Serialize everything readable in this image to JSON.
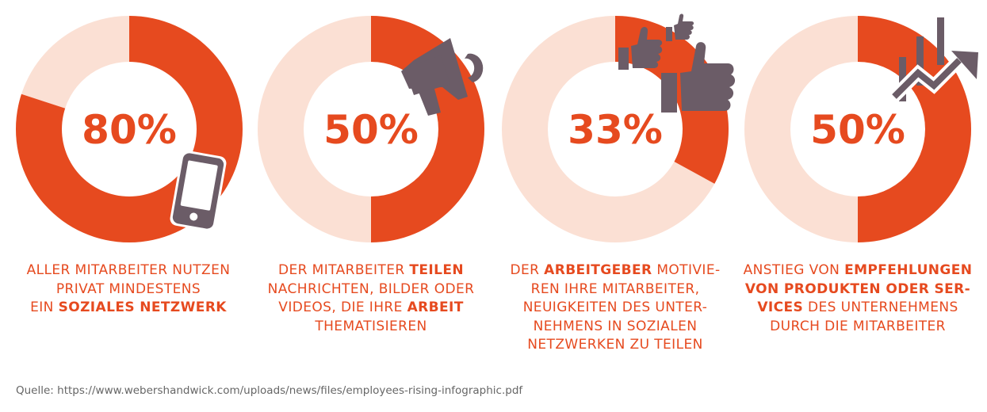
{
  "chart_data": {
    "type": "pie",
    "variant": "donut",
    "colors": {
      "filled": "#e64a1f",
      "remainder": "#fbe0d4",
      "icon": "#6b5c67",
      "text": "#e64a1f",
      "source_text": "#666666"
    },
    "items": [
      {
        "value": 80,
        "label": "80%",
        "icon": "smartphone-icon",
        "caption": [
          [
            {
              "t": "ALLER MITARBEITER NUTZEN",
              "b": false
            }
          ],
          [
            {
              "t": "PRIVAT MINDESTENS",
              "b": false
            }
          ],
          [
            {
              "t": "EIN ",
              "b": false
            },
            {
              "t": "SOZIALES NETZWERK",
              "b": true
            }
          ]
        ]
      },
      {
        "value": 50,
        "label": "50%",
        "icon": "megaphone-icon",
        "caption": [
          [
            {
              "t": "DER MITARBEITER ",
              "b": false
            },
            {
              "t": "TEILEN",
              "b": true
            }
          ],
          [
            {
              "t": "NACHRICHTEN, BILDER ODER",
              "b": false
            }
          ],
          [
            {
              "t": "VIDEOS, DIE IHRE ",
              "b": false
            },
            {
              "t": "ARBEIT",
              "b": true
            }
          ],
          [
            {
              "t": "THEMATISIEREN",
              "b": false
            }
          ]
        ]
      },
      {
        "value": 33,
        "label": "33%",
        "icon": "thumbs-up-icon",
        "caption": [
          [
            {
              "t": "DER ",
              "b": false
            },
            {
              "t": "ARBEITGEBER",
              "b": true
            },
            {
              "t": " MOTIVIE-",
              "b": false
            }
          ],
          [
            {
              "t": "REN IHRE MITARBEITER,",
              "b": false
            }
          ],
          [
            {
              "t": "NEUIGKEITEN DES UNTER-",
              "b": false
            }
          ],
          [
            {
              "t": "NEHMENS IN SOZIALEN",
              "b": false
            }
          ],
          [
            {
              "t": "NETZWERKEN ZU TEILEN",
              "b": false
            }
          ]
        ]
      },
      {
        "value": 50,
        "label": "50%",
        "icon": "growth-chart-icon",
        "caption": [
          [
            {
              "t": "ANSTIEG VON ",
              "b": false
            },
            {
              "t": "EMPFEHLUNGEN",
              "b": true
            }
          ],
          [
            {
              "t": "VON PRODUKTEN ODER SER-",
              "b": true
            }
          ],
          [
            {
              "t": "VICES",
              "b": true
            },
            {
              "t": " DES UNTERNEHMENS",
              "b": false
            }
          ],
          [
            {
              "t": "DURCH DIE MITARBEITER",
              "b": false
            }
          ]
        ]
      }
    ]
  },
  "source": "Quelle: https://www.webershandwick.com/uploads/news/files/employees-rising-infographic.pdf"
}
